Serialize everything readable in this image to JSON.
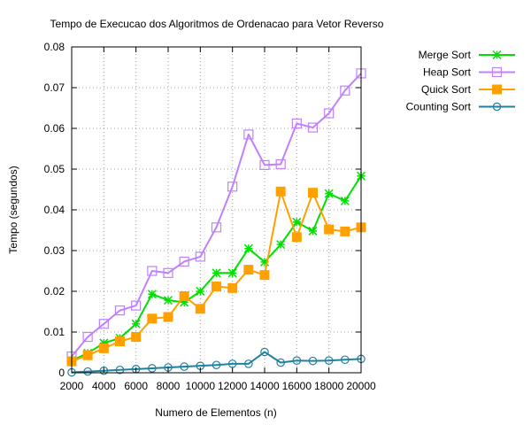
{
  "chart_data": {
    "type": "line",
    "title": "Tempo de Execucao dos Algoritmos de Ordenacao para Vetor Reverso",
    "xlabel": "Numero de Elementos (n)",
    "ylabel": "Tempo (segundos)",
    "xlim": [
      2000,
      20000
    ],
    "ylim": [
      0,
      0.08
    ],
    "xticks": [
      2000,
      4000,
      6000,
      8000,
      10000,
      12000,
      14000,
      16000,
      18000,
      20000
    ],
    "xtick_labels": [
      "2000",
      "4000",
      "6000",
      "8000",
      "10000",
      "12000",
      "14000",
      "16000",
      "18000",
      "20000"
    ],
    "yticks": [
      0,
      0.01,
      0.02,
      0.03,
      0.04,
      0.05,
      0.06,
      0.07,
      0.08
    ],
    "ytick_labels": [
      "0",
      "0.01",
      "0.02",
      "0.03",
      "0.04",
      "0.05",
      "0.06",
      "0.07",
      "0.08"
    ],
    "grid": true,
    "legend_position": "top-right, outside plot",
    "x": [
      2000,
      3000,
      4000,
      5000,
      6000,
      7000,
      8000,
      9000,
      10000,
      11000,
      12000,
      13000,
      14000,
      15000,
      16000,
      17000,
      18000,
      19000,
      20000
    ],
    "series": [
      {
        "name": "Merge Sort",
        "color": "#00e000",
        "marker": "star",
        "values": [
          0.003,
          0.0048,
          0.0073,
          0.0085,
          0.012,
          0.0193,
          0.0178,
          0.0173,
          0.02,
          0.0245,
          0.0245,
          0.0305,
          0.0272,
          0.0315,
          0.037,
          0.0348,
          0.044,
          0.0422,
          0.0483
        ]
      },
      {
        "name": "Heap Sort",
        "color": "#c080ff",
        "marker": "open-square",
        "values": [
          0.004,
          0.0088,
          0.012,
          0.0153,
          0.0165,
          0.025,
          0.0245,
          0.0273,
          0.0285,
          0.0357,
          0.0457,
          0.0585,
          0.051,
          0.0512,
          0.0612,
          0.0602,
          0.0637,
          0.0693,
          0.0735
        ]
      },
      {
        "name": "Quick Sort",
        "color": "#ffa000",
        "marker": "filled-square",
        "values": [
          0.0028,
          0.0043,
          0.006,
          0.0077,
          0.0088,
          0.0133,
          0.0137,
          0.0188,
          0.0157,
          0.0212,
          0.0208,
          0.0253,
          0.024,
          0.0445,
          0.0333,
          0.0442,
          0.0352,
          0.0347,
          0.0357
        ]
      },
      {
        "name": "Counting Sort",
        "color": "#2080a0",
        "marker": "open-circle",
        "values": [
          0.0001,
          0.0003,
          0.0005,
          0.0007,
          0.0009,
          0.0011,
          0.0013,
          0.0015,
          0.0017,
          0.0019,
          0.0022,
          0.0022,
          0.0051,
          0.0025,
          0.003,
          0.0029,
          0.003,
          0.0032,
          0.0034
        ]
      }
    ]
  }
}
